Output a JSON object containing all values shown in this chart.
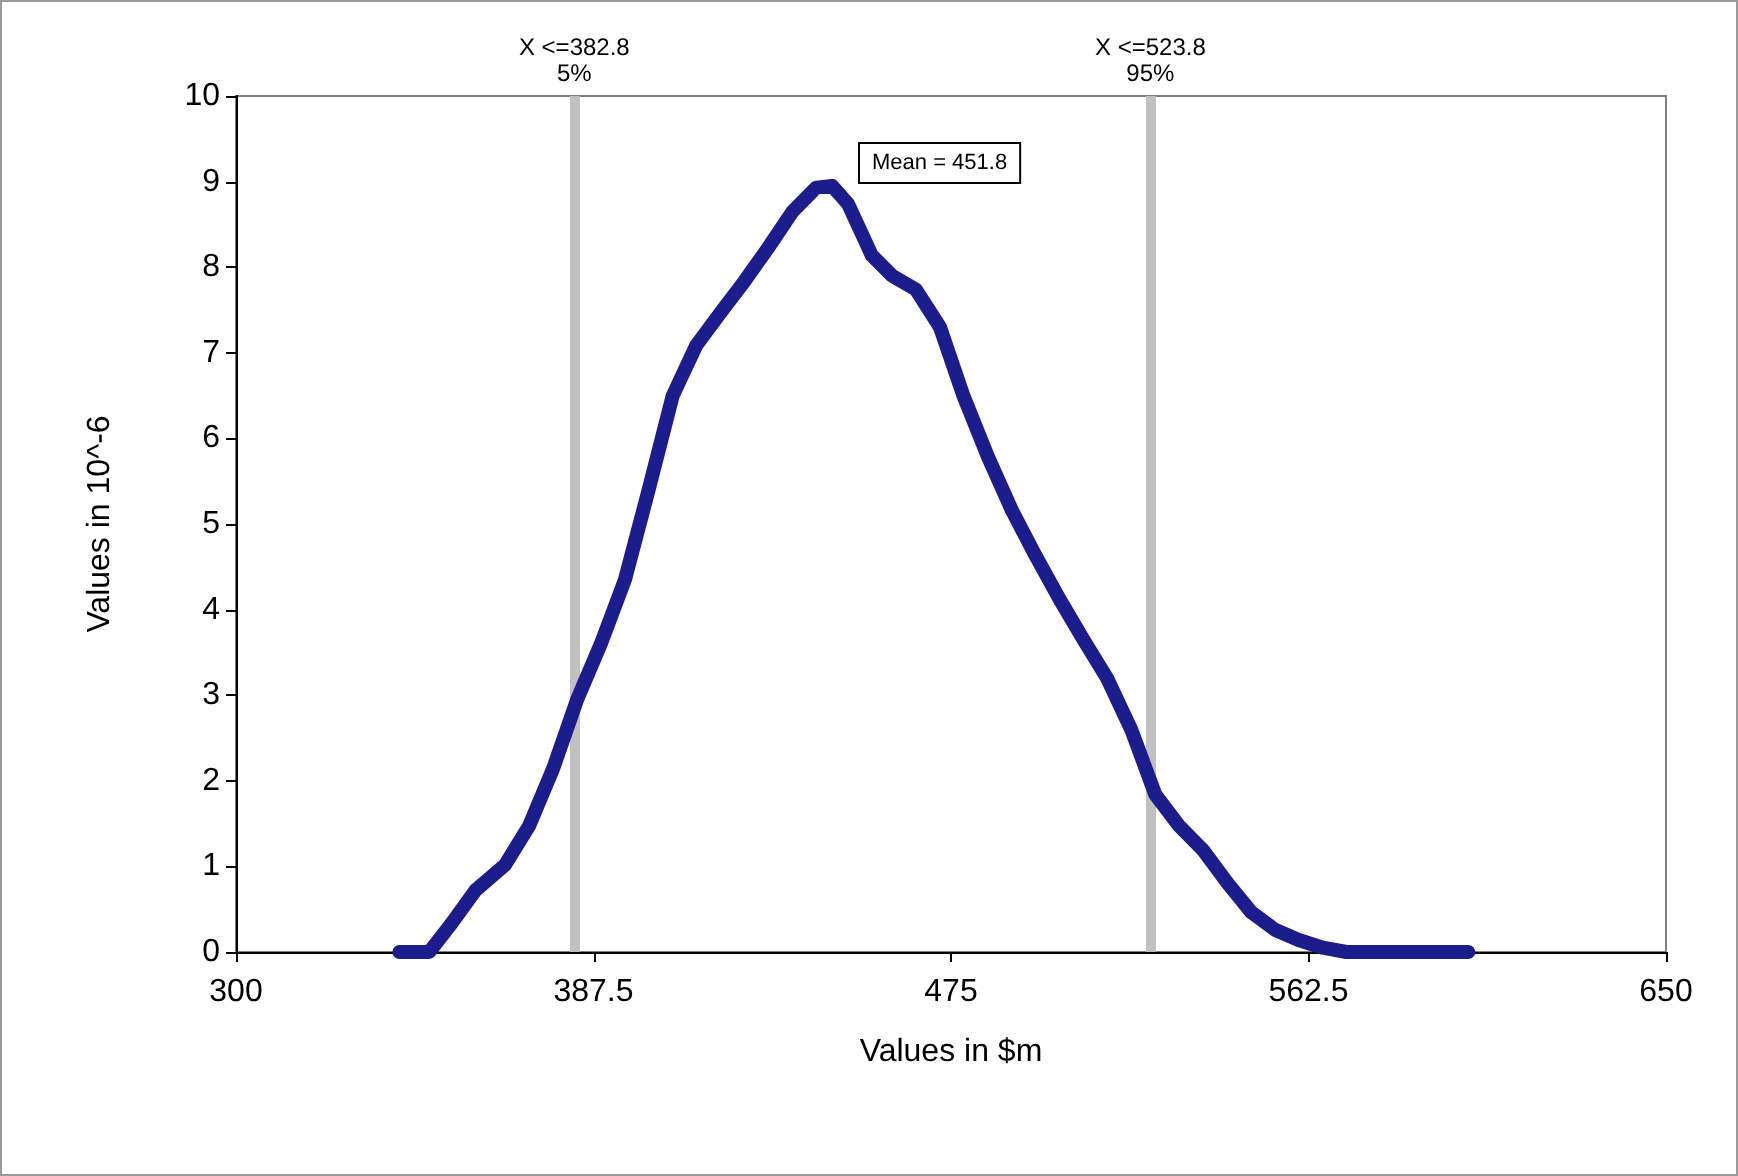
{
  "chart_data": {
    "type": "line",
    "xlabel": "Values in $m",
    "ylabel": "Values in 10^-6",
    "annotations": [
      "Mean = 451.8"
    ],
    "x": [
      340.0,
      347.3,
      352.7,
      358.6,
      365.9,
      371.7,
      377.6,
      383.5,
      389.3,
      395.2,
      401.0,
      406.9,
      412.7,
      418.6,
      424.5,
      430.3,
      436.2,
      442.0,
      445.9,
      449.8,
      455.6,
      460.6,
      466.4,
      472.3,
      478.1,
      484.0,
      489.9,
      495.7,
      501.6,
      507.4,
      513.3,
      519.1,
      525.0,
      530.9,
      536.7,
      542.6,
      548.4,
      554.3,
      560.1,
      566.0,
      571.8,
      601.6
    ],
    "series": [
      {
        "color": "#1c1c8c",
        "values": [
          0,
          0,
          0.33,
          0.72,
          1.02,
          1.47,
          2.14,
          2.95,
          3.6,
          4.35,
          5.4,
          6.5,
          7.09,
          7.47,
          7.84,
          8.23,
          8.65,
          8.93,
          8.95,
          8.74,
          8.14,
          7.9,
          7.74,
          7.3,
          6.49,
          5.79,
          5.16,
          4.63,
          4.12,
          3.65,
          3.19,
          2.6,
          1.84,
          1.47,
          1.19,
          0.81,
          0.47,
          0.26,
          0.14,
          0.05,
          0,
          0
        ]
      }
    ],
    "xlim": [
      300,
      650
    ],
    "xticks": [
      300,
      387.5,
      475,
      562.5,
      650
    ],
    "ylim": [
      0,
      10
    ],
    "yticks": [
      0,
      1,
      2,
      3,
      4,
      5,
      6,
      7,
      8,
      9,
      10
    ],
    "ref_lines": [
      {
        "axis": "x",
        "value": 382.8,
        "label": "X <=382.8\n5%",
        "color": "#c0c0c0"
      },
      {
        "axis": "x",
        "value": 523.8,
        "label": "X <=523.8\n95%",
        "color": "#c0c0c0"
      }
    ],
    "grid": false,
    "line_style": "solid"
  }
}
